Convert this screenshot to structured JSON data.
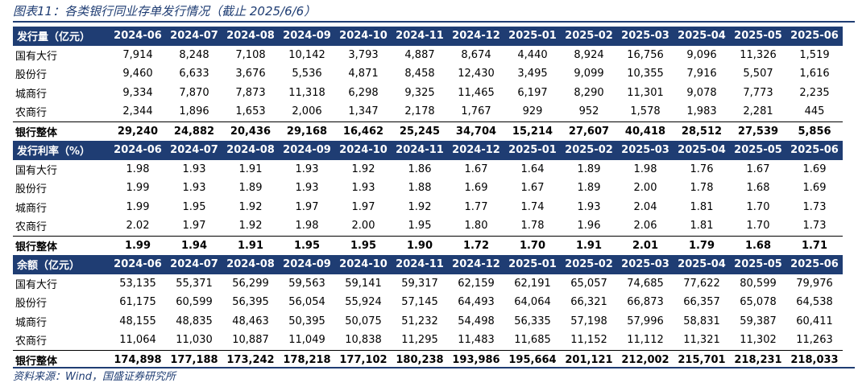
{
  "title": "图表11：各类银行同业存单发行情况（截止 2025/6/6）",
  "source": "资料来源：Wind，国盛证券研究所",
  "colors": {
    "header_bg": "#1f3d73",
    "accent": "#1f3d73"
  },
  "columns": [
    "2024-06",
    "2024-07",
    "2024-08",
    "2024-09",
    "2024-10",
    "2024-11",
    "2024-12",
    "2025-01",
    "2025-02",
    "2025-03",
    "2025-04",
    "2025-05",
    "2025-06"
  ],
  "sections": [
    {
      "label": "发行量（亿元）",
      "rows": [
        {
          "name": "国有大行",
          "values": [
            "7,914",
            "8,248",
            "7,108",
            "10,142",
            "3,793",
            "4,887",
            "8,674",
            "4,440",
            "8,924",
            "16,756",
            "9,096",
            "11,326",
            "1,519"
          ]
        },
        {
          "name": "股份行",
          "values": [
            "9,460",
            "6,633",
            "3,676",
            "5,536",
            "4,871",
            "8,458",
            "12,430",
            "3,495",
            "9,099",
            "10,355",
            "7,916",
            "5,507",
            "1,616"
          ]
        },
        {
          "name": "城商行",
          "values": [
            "9,334",
            "7,870",
            "7,873",
            "11,318",
            "6,298",
            "9,325",
            "11,465",
            "6,197",
            "8,290",
            "11,301",
            "9,078",
            "7,773",
            "2,235"
          ]
        },
        {
          "name": "农商行",
          "values": [
            "2,344",
            "1,896",
            "1,653",
            "2,006",
            "1,347",
            "2,178",
            "1,767",
            "929",
            "952",
            "1,578",
            "1,983",
            "2,281",
            "445"
          ]
        }
      ],
      "total": {
        "name": "银行整体",
        "values": [
          "29,240",
          "24,882",
          "20,436",
          "29,168",
          "16,462",
          "25,245",
          "34,704",
          "15,214",
          "27,607",
          "40,418",
          "28,512",
          "27,539",
          "5,856"
        ]
      }
    },
    {
      "label": "发行利率（%）",
      "rows": [
        {
          "name": "国有大行",
          "values": [
            "1.98",
            "1.93",
            "1.91",
            "1.93",
            "1.92",
            "1.86",
            "1.67",
            "1.64",
            "1.89",
            "1.98",
            "1.76",
            "1.67",
            "1.69"
          ]
        },
        {
          "name": "股份行",
          "values": [
            "1.99",
            "1.93",
            "1.89",
            "1.93",
            "1.93",
            "1.88",
            "1.69",
            "1.67",
            "1.89",
            "2.00",
            "1.78",
            "1.68",
            "1.69"
          ]
        },
        {
          "name": "城商行",
          "values": [
            "1.99",
            "1.95",
            "1.92",
            "1.97",
            "1.97",
            "1.92",
            "1.77",
            "1.74",
            "1.93",
            "2.04",
            "1.81",
            "1.70",
            "1.73"
          ]
        },
        {
          "name": "农商行",
          "values": [
            "2.02",
            "1.97",
            "1.92",
            "1.98",
            "2.00",
            "1.95",
            "1.80",
            "1.78",
            "1.96",
            "2.06",
            "1.81",
            "1.70",
            "1.73"
          ]
        }
      ],
      "total": {
        "name": "银行整体",
        "values": [
          "1.99",
          "1.94",
          "1.91",
          "1.95",
          "1.95",
          "1.90",
          "1.72",
          "1.70",
          "1.91",
          "2.01",
          "1.79",
          "1.68",
          "1.71"
        ]
      }
    },
    {
      "label": "余额（亿元）",
      "rows": [
        {
          "name": "国有大行",
          "values": [
            "53,135",
            "55,371",
            "56,299",
            "59,563",
            "59,141",
            "59,317",
            "62,159",
            "62,191",
            "65,057",
            "74,685",
            "77,622",
            "80,599",
            "79,976"
          ]
        },
        {
          "name": "股份行",
          "values": [
            "61,175",
            "60,599",
            "56,395",
            "56,054",
            "55,924",
            "57,145",
            "64,493",
            "64,064",
            "66,321",
            "66,873",
            "66,357",
            "65,078",
            "64,538"
          ]
        },
        {
          "name": "城商行",
          "values": [
            "48,155",
            "48,835",
            "48,463",
            "50,395",
            "50,075",
            "51,232",
            "54,498",
            "56,335",
            "57,198",
            "57,996",
            "58,831",
            "59,387",
            "60,411"
          ]
        },
        {
          "name": "农商行",
          "values": [
            "11,064",
            "11,030",
            "10,887",
            "11,049",
            "10,838",
            "11,295",
            "11,483",
            "11,685",
            "11,152",
            "11,112",
            "11,321",
            "11,302",
            "11,263"
          ]
        }
      ],
      "total": {
        "name": "银行整体",
        "values": [
          "174,898",
          "177,188",
          "173,242",
          "178,218",
          "177,102",
          "180,238",
          "193,986",
          "195,664",
          "201,121",
          "212,002",
          "215,701",
          "218,231",
          "218,033"
        ]
      }
    }
  ]
}
